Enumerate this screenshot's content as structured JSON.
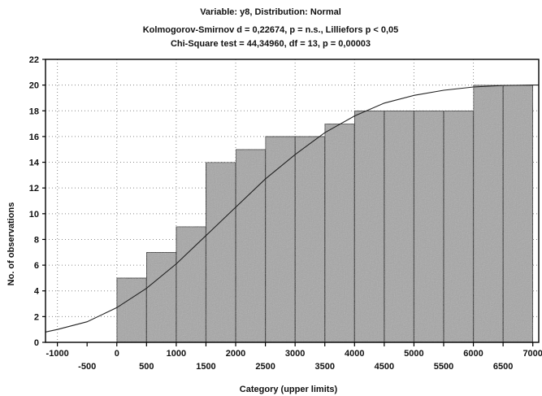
{
  "chart_data": {
    "type": "bar",
    "title": "Variable: y8, Distribution: Normal",
    "subtitle_lines": [
      "Kolmogorov-Smirnov d = 0,22674, p = n.s., Lilliefors p < 0,05",
      "Chi-Square test = 44,34960, df = 13, p = 0,00003"
    ],
    "xlabel": "Category (upper limits)",
    "ylabel": "No. of observations",
    "xlim": [
      -1200,
      7100
    ],
    "ylim": [
      0,
      22
    ],
    "yticks": [
      "0",
      "2",
      "4",
      "6",
      "8",
      "10",
      "12",
      "14",
      "16",
      "18",
      "20",
      "22"
    ],
    "xticks_upper": [
      "-1000",
      "0",
      "1000",
      "2000",
      "3000",
      "4000",
      "5000",
      "6000",
      "7000"
    ],
    "xticks_lower": [
      "-500",
      "500",
      "1500",
      "2500",
      "3500",
      "4500",
      "5500",
      "6500"
    ],
    "bars": [
      {
        "x0": 0,
        "x1": 500,
        "value": 5
      },
      {
        "x0": 500,
        "x1": 1000,
        "value": 7
      },
      {
        "x0": 1000,
        "x1": 1500,
        "value": 9
      },
      {
        "x0": 1500,
        "x1": 2000,
        "value": 14
      },
      {
        "x0": 2000,
        "x1": 2500,
        "value": 15
      },
      {
        "x0": 2500,
        "x1": 3000,
        "value": 16
      },
      {
        "x0": 3000,
        "x1": 3500,
        "value": 16
      },
      {
        "x0": 3500,
        "x1": 4000,
        "value": 17
      },
      {
        "x0": 4000,
        "x1": 4500,
        "value": 18
      },
      {
        "x0": 4500,
        "x1": 5000,
        "value": 18
      },
      {
        "x0": 5000,
        "x1": 5500,
        "value": 18
      },
      {
        "x0": 5500,
        "x1": 6000,
        "value": 18
      },
      {
        "x0": 6000,
        "x1": 6500,
        "value": 20
      },
      {
        "x0": 6500,
        "x1": 7000,
        "value": 20
      }
    ],
    "curve": {
      "type": "expected-normal-cumulative",
      "points": [
        [
          -1200,
          0.8
        ],
        [
          -1000,
          1.0
        ],
        [
          -500,
          1.6
        ],
        [
          0,
          2.7
        ],
        [
          500,
          4.2
        ],
        [
          1000,
          6.1
        ],
        [
          1500,
          8.3
        ],
        [
          2000,
          10.5
        ],
        [
          2500,
          12.7
        ],
        [
          3000,
          14.6
        ],
        [
          3500,
          16.3
        ],
        [
          4000,
          17.6
        ],
        [
          4500,
          18.6
        ],
        [
          5000,
          19.2
        ],
        [
          5500,
          19.6
        ],
        [
          6000,
          19.85
        ],
        [
          6500,
          19.97
        ],
        [
          7000,
          20.0
        ],
        [
          7100,
          20.0
        ]
      ]
    },
    "grid": true,
    "legend": "none",
    "colors": {
      "bar_fill": "#a6a6a6",
      "bar_stroke": "#1a1a1a",
      "curve": "#222222",
      "grid": "#8a8a8a",
      "axis": "#000000"
    }
  }
}
